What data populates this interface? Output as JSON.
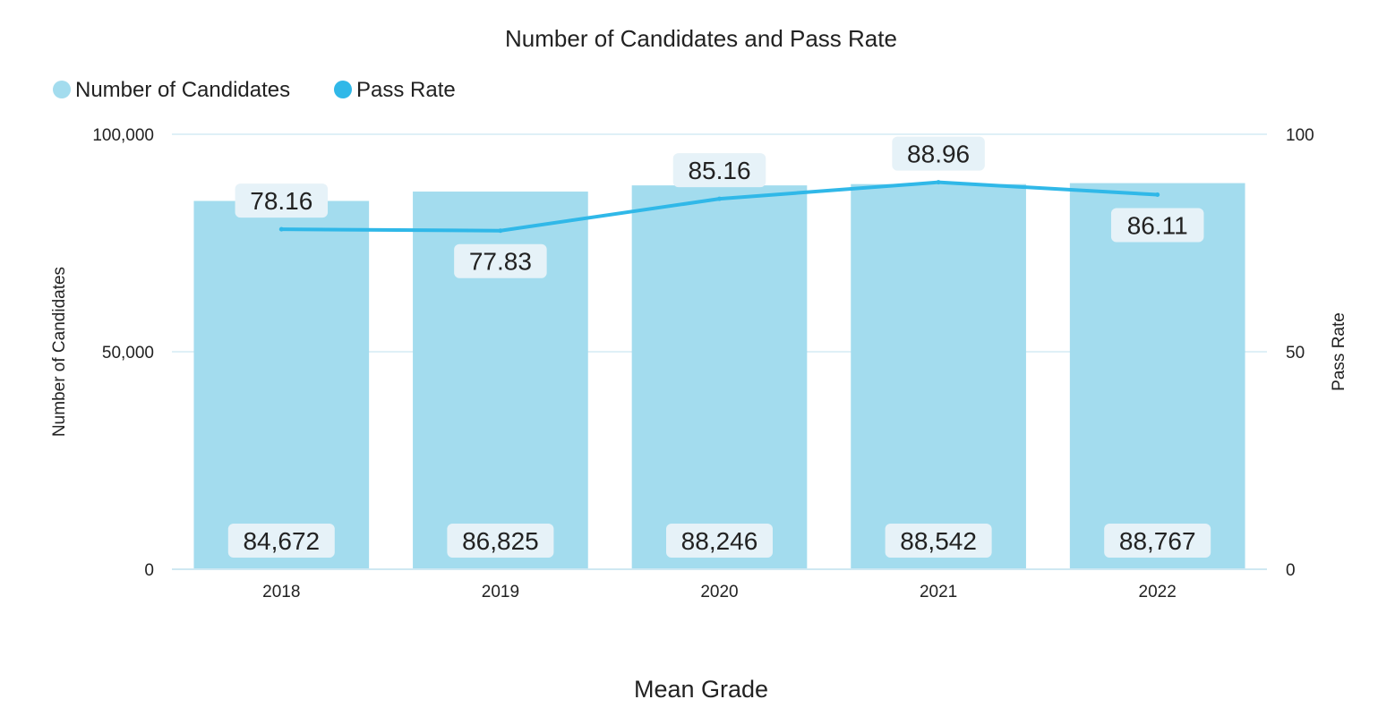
{
  "chart_data": {
    "type": "bar",
    "title": "Number of Candidates and Pass Rate",
    "xlabel": "Mean Grade",
    "categories": [
      "2018",
      "2019",
      "2020",
      "2021",
      "2022"
    ],
    "series": [
      {
        "name": "Number of Candidates",
        "type": "bar",
        "axis": "left",
        "color": "#a3dcee",
        "values": [
          84672,
          86825,
          88246,
          88542,
          88767
        ],
        "labels": [
          "84,672",
          "86,825",
          "88,246",
          "88,542",
          "88,767"
        ]
      },
      {
        "name": "Pass Rate",
        "type": "line",
        "axis": "right",
        "color": "#30b8e8",
        "values": [
          78.16,
          77.83,
          85.16,
          88.96,
          86.11
        ],
        "labels": [
          "78.16",
          "77.83",
          "85.16",
          "88.96",
          "86.11"
        ]
      }
    ],
    "y_left": {
      "label": "Number of Candidates",
      "range": [
        0,
        100000
      ],
      "ticks": [
        "0",
        "50,000",
        "100,000"
      ],
      "tick_values": [
        0,
        50000,
        100000
      ]
    },
    "y_right": {
      "label": "Pass Rate",
      "range": [
        0,
        100
      ],
      "ticks": [
        "0",
        "50",
        "100"
      ],
      "tick_values": [
        0,
        50,
        100
      ]
    },
    "legend": {
      "placement": "top-left"
    },
    "grid": true,
    "gridline_color": "#dff0f7",
    "label_box_color": "#e6f2f8"
  }
}
